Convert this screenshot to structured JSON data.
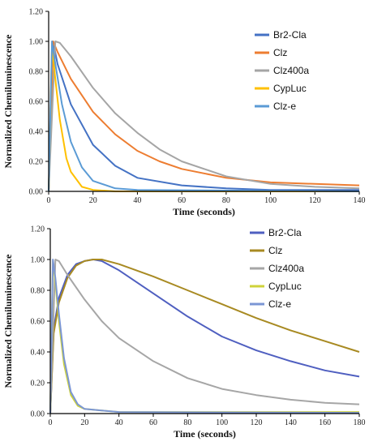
{
  "chart_data": [
    {
      "type": "line",
      "title": "",
      "xlabel": "Time (seconds)",
      "ylabel": "Normalized Chemiluminescence",
      "xlim": [
        0,
        140
      ],
      "ylim": [
        0,
        1.2
      ],
      "xticks": [
        "0",
        "20",
        "40",
        "60",
        "80",
        "100",
        "120",
        "140"
      ],
      "yticks": [
        "0.00",
        "0.20",
        "0.40",
        "0.60",
        "0.80",
        "1.00",
        "1.20"
      ],
      "legend_position": "right",
      "series": [
        {
          "name": "Br2-Cla",
          "color": "#4472c4",
          "x": [
            0,
            2,
            4,
            10,
            20,
            30,
            40,
            60,
            80,
            100,
            120,
            140
          ],
          "y": [
            0,
            1.0,
            0.85,
            0.58,
            0.31,
            0.17,
            0.09,
            0.04,
            0.02,
            0.01,
            0.01,
            0.01
          ]
        },
        {
          "name": "Clz",
          "color": "#ed7d31",
          "x": [
            0,
            2,
            4,
            10,
            20,
            30,
            40,
            50,
            60,
            80,
            100,
            120,
            140
          ],
          "y": [
            0,
            1.0,
            0.93,
            0.75,
            0.53,
            0.38,
            0.27,
            0.2,
            0.15,
            0.09,
            0.06,
            0.05,
            0.04
          ]
        },
        {
          "name": "Clz400a",
          "color": "#a5a5a5",
          "x": [
            0,
            3,
            5,
            10,
            20,
            30,
            40,
            50,
            60,
            80,
            100,
            120,
            140
          ],
          "y": [
            0,
            1.0,
            0.99,
            0.9,
            0.69,
            0.52,
            0.39,
            0.28,
            0.2,
            0.1,
            0.05,
            0.03,
            0.02
          ]
        },
        {
          "name": "CypLuc",
          "color": "#ffc000",
          "x": [
            0,
            1.5,
            3,
            5,
            8,
            10,
            15,
            20,
            30,
            140
          ],
          "y": [
            0,
            0.97,
            0.75,
            0.48,
            0.22,
            0.13,
            0.03,
            0.01,
            0.0,
            0.0
          ]
        },
        {
          "name": "Clz-e",
          "color": "#5b9bd5",
          "x": [
            0,
            1.5,
            3,
            6,
            10,
            15,
            20,
            30,
            40,
            140
          ],
          "y": [
            0,
            1.0,
            0.85,
            0.58,
            0.33,
            0.16,
            0.07,
            0.02,
            0.01,
            0.0
          ]
        }
      ]
    },
    {
      "type": "line",
      "title": "",
      "xlabel": "Time (seconds)",
      "ylabel": "Normalized Chemiluminescence",
      "xlim": [
        0,
        180
      ],
      "ylim": [
        0,
        1.2
      ],
      "xticks": [
        "0",
        "20",
        "40",
        "60",
        "80",
        "100",
        "120",
        "140",
        "160",
        "180"
      ],
      "yticks": [
        "0.00",
        "0.20",
        "0.40",
        "0.60",
        "0.80",
        "1.00",
        "1.20"
      ],
      "legend_position": "right",
      "series": [
        {
          "name": "Br2-Cla",
          "color": "#4f5fc0",
          "x": [
            0,
            2,
            5,
            10,
            15,
            20,
            25,
            30,
            40,
            60,
            80,
            100,
            120,
            140,
            160,
            180
          ],
          "y": [
            0,
            0.55,
            0.75,
            0.9,
            0.97,
            0.99,
            1.0,
            0.99,
            0.93,
            0.78,
            0.63,
            0.5,
            0.41,
            0.34,
            0.28,
            0.24
          ]
        },
        {
          "name": "Clz",
          "color": "#a88a22",
          "x": [
            0,
            2,
            5,
            10,
            15,
            20,
            25,
            30,
            40,
            60,
            80,
            100,
            120,
            140,
            160,
            180
          ],
          "y": [
            0,
            0.52,
            0.72,
            0.88,
            0.96,
            0.99,
            1.0,
            1.0,
            0.97,
            0.89,
            0.8,
            0.71,
            0.62,
            0.54,
            0.47,
            0.4
          ]
        },
        {
          "name": "Clz400a",
          "color": "#a6a6a6",
          "x": [
            0,
            3,
            5,
            10,
            20,
            30,
            40,
            60,
            80,
            100,
            120,
            140,
            160,
            180
          ],
          "y": [
            0,
            1.0,
            0.99,
            0.9,
            0.74,
            0.6,
            0.49,
            0.34,
            0.23,
            0.16,
            0.12,
            0.09,
            0.07,
            0.06
          ]
        },
        {
          "name": "CypLuc",
          "color": "#cfd33a",
          "x": [
            0,
            1.5,
            3,
            5,
            8,
            12,
            16,
            20,
            30,
            40,
            180
          ],
          "y": [
            0,
            0.99,
            0.85,
            0.6,
            0.32,
            0.12,
            0.05,
            0.03,
            0.02,
            0.01,
            0.01
          ]
        },
        {
          "name": "Clz-e",
          "color": "#7b96d4",
          "x": [
            0,
            1.5,
            3,
            5,
            8,
            12,
            16,
            20,
            30,
            40,
            180
          ],
          "y": [
            0,
            1.0,
            0.88,
            0.65,
            0.36,
            0.14,
            0.06,
            0.03,
            0.02,
            0.01,
            0.005
          ]
        }
      ]
    }
  ]
}
